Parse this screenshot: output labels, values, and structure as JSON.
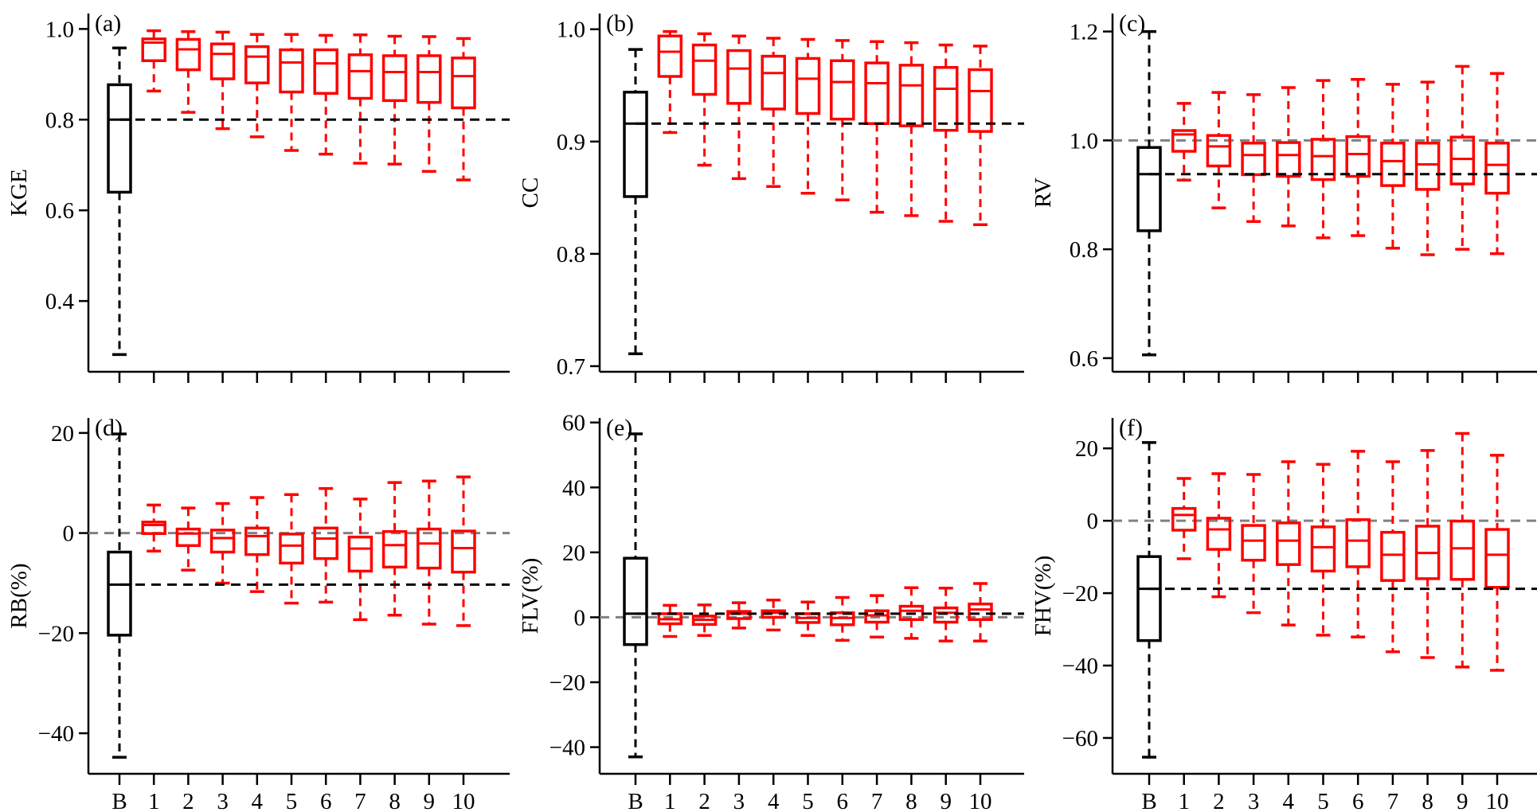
{
  "colors": {
    "baseline": "#000000",
    "models": "#ff0000",
    "zero_line": "#808080"
  },
  "chart_data": [
    {
      "type": "box",
      "panel_label": "(a)",
      "ylabel": "KGE",
      "categories": [
        "B",
        "1",
        "2",
        "3",
        "4",
        "5",
        "6",
        "7",
        "8",
        "9",
        "10"
      ],
      "yticks": [
        0.4,
        0.6,
        0.8,
        1.0
      ],
      "ytick_labels": [
        "0.4",
        "0.6",
        "0.8",
        "1.0"
      ],
      "ylim": [
        0.244,
        1.034
      ],
      "reference_line": 0.8,
      "zero_line": null,
      "boxes": [
        [
          0.282,
          0.64,
          0.8,
          0.877,
          0.958
        ],
        [
          0.863,
          0.93,
          0.97,
          0.978,
          0.996
        ],
        [
          0.816,
          0.91,
          0.955,
          0.977,
          0.994
        ],
        [
          0.78,
          0.89,
          0.945,
          0.967,
          0.993
        ],
        [
          0.762,
          0.881,
          0.939,
          0.961,
          0.988
        ],
        [
          0.732,
          0.861,
          0.926,
          0.954,
          0.988
        ],
        [
          0.724,
          0.858,
          0.924,
          0.954,
          0.986
        ],
        [
          0.704,
          0.847,
          0.907,
          0.943,
          0.987
        ],
        [
          0.702,
          0.842,
          0.905,
          0.941,
          0.984
        ],
        [
          0.686,
          0.838,
          0.905,
          0.941,
          0.983
        ],
        [
          0.667,
          0.826,
          0.896,
          0.936,
          0.979
        ]
      ]
    },
    {
      "type": "box",
      "panel_label": "(b)",
      "ylabel": "CC",
      "categories": [
        "B",
        "1",
        "2",
        "3",
        "4",
        "5",
        "6",
        "7",
        "8",
        "9",
        "10"
      ],
      "yticks": [
        0.7,
        0.8,
        0.9,
        1.0
      ],
      "ytick_labels": [
        "0.7",
        "0.8",
        "0.9",
        "1.0"
      ],
      "ylim": [
        0.695,
        1.014
      ],
      "reference_line": 0.916,
      "zero_line": null,
      "boxes": [
        [
          0.711,
          0.851,
          0.916,
          0.944,
          0.982
        ],
        [
          0.908,
          0.958,
          0.98,
          0.994,
          0.998
        ],
        [
          0.879,
          0.942,
          0.972,
          0.986,
          0.996
        ],
        [
          0.867,
          0.934,
          0.965,
          0.981,
          0.994
        ],
        [
          0.86,
          0.929,
          0.961,
          0.976,
          0.992
        ],
        [
          0.854,
          0.925,
          0.956,
          0.974,
          0.991
        ],
        [
          0.848,
          0.92,
          0.953,
          0.972,
          0.99
        ],
        [
          0.837,
          0.916,
          0.952,
          0.97,
          0.989
        ],
        [
          0.834,
          0.914,
          0.95,
          0.968,
          0.988
        ],
        [
          0.829,
          0.91,
          0.947,
          0.966,
          0.986
        ],
        [
          0.826,
          0.909,
          0.945,
          0.964,
          0.985
        ]
      ]
    },
    {
      "type": "box",
      "panel_label": "(c)",
      "ylabel": "RV",
      "categories": [
        "B",
        "1",
        "2",
        "3",
        "4",
        "5",
        "6",
        "7",
        "8",
        "9",
        "10"
      ],
      "yticks": [
        0.6,
        0.8,
        1.0,
        1.2
      ],
      "ytick_labels": [
        "0.6",
        "0.8",
        "1.0",
        "1.2"
      ],
      "ylim": [
        0.575,
        1.233
      ],
      "reference_line": 0.938,
      "zero_line": 1.0,
      "boxes": [
        [
          0.606,
          0.834,
          0.938,
          0.987,
          1.2
        ],
        [
          0.927,
          0.98,
          1.011,
          1.018,
          1.068
        ],
        [
          0.876,
          0.953,
          0.989,
          1.009,
          1.088
        ],
        [
          0.851,
          0.937,
          0.973,
          0.995,
          1.084
        ],
        [
          0.843,
          0.934,
          0.973,
          0.996,
          1.097
        ],
        [
          0.821,
          0.928,
          0.971,
          1.002,
          1.11
        ],
        [
          0.825,
          0.934,
          0.975,
          1.007,
          1.112
        ],
        [
          0.802,
          0.917,
          0.962,
          0.995,
          1.103
        ],
        [
          0.79,
          0.91,
          0.956,
          0.995,
          1.107
        ],
        [
          0.8,
          0.92,
          0.966,
          1.006,
          1.136
        ],
        [
          0.792,
          0.903,
          0.955,
          0.995,
          1.123
        ]
      ]
    },
    {
      "type": "box",
      "panel_label": "(d)",
      "ylabel": "RB(%)",
      "categories": [
        "B",
        "1",
        "2",
        "3",
        "4",
        "5",
        "6",
        "7",
        "8",
        "9",
        "10"
      ],
      "yticks": [
        -40,
        -20,
        0,
        20
      ],
      "ytick_labels": [
        "−40",
        "−20",
        "0",
        "20"
      ],
      "ylim": [
        -48.1,
        23.0
      ],
      "reference_line": -10.3,
      "zero_line": 0,
      "boxes": [
        [
          -44.8,
          -20.4,
          -10.3,
          -3.8,
          19.8
        ],
        [
          -3.6,
          -0.1,
          1.6,
          2.2,
          5.6
        ],
        [
          -7.4,
          -2.5,
          -0.1,
          0.8,
          5.0
        ],
        [
          -10.0,
          -3.8,
          -1.0,
          0.6,
          5.9
        ],
        [
          -11.7,
          -4.3,
          -0.6,
          1.0,
          7.1
        ],
        [
          -14.0,
          -6.0,
          -2.5,
          -0.2,
          7.7
        ],
        [
          -13.8,
          -5.1,
          -1.1,
          1.0,
          8.9
        ],
        [
          -17.3,
          -7.6,
          -3.1,
          -0.8,
          6.8
        ],
        [
          -16.4,
          -6.8,
          -2.4,
          0.3,
          10.1
        ],
        [
          -18.2,
          -7.0,
          -2.1,
          0.8,
          10.4
        ],
        [
          -18.5,
          -7.8,
          -3.0,
          0.4,
          11.2
        ]
      ]
    },
    {
      "type": "box",
      "panel_label": "(e)",
      "ylabel": "FLV(%)",
      "categories": [
        "B",
        "1",
        "2",
        "3",
        "4",
        "5",
        "6",
        "7",
        "8",
        "9",
        "10"
      ],
      "yticks": [
        -40,
        -20,
        0,
        20,
        40,
        60
      ],
      "ytick_labels": [
        "−40",
        "−20",
        "0",
        "20",
        "40",
        "60"
      ],
      "ylim": [
        -48.2,
        61.4
      ],
      "reference_line": 1.1,
      "zero_line": 0,
      "boxes": [
        [
          -43.0,
          -8.4,
          1.1,
          18.2,
          56.5
        ],
        [
          -5.9,
          -2.0,
          -0.6,
          1.1,
          3.7
        ],
        [
          -5.6,
          -2.2,
          -0.8,
          0.4,
          3.8
        ],
        [
          -3.3,
          -0.4,
          1.1,
          1.8,
          4.5
        ],
        [
          -3.9,
          0.0,
          1.4,
          2.0,
          5.3
        ],
        [
          -5.6,
          -1.6,
          -0.2,
          1.1,
          4.7
        ],
        [
          -7.1,
          -2.3,
          -0.2,
          1.4,
          6.1
        ],
        [
          -6.1,
          -1.5,
          0.6,
          2.0,
          6.7
        ],
        [
          -6.5,
          -0.7,
          2.0,
          3.4,
          9.1
        ],
        [
          -7.3,
          -1.5,
          1.4,
          2.9,
          9.0
        ],
        [
          -7.3,
          -0.7,
          2.4,
          4.1,
          10.4
        ]
      ]
    },
    {
      "type": "box",
      "panel_label": "(f)",
      "ylabel": "FHV(%)",
      "categories": [
        "B",
        "1",
        "2",
        "3",
        "4",
        "5",
        "6",
        "7",
        "8",
        "9",
        "10"
      ],
      "yticks": [
        -60,
        -40,
        -20,
        0,
        20
      ],
      "ytick_labels": [
        "−60",
        "−40",
        "−20",
        "0",
        "20"
      ],
      "ylim": [
        -69.9,
        28.4
      ],
      "reference_line": -18.8,
      "zero_line": 0,
      "boxes": [
        [
          -65.3,
          -33.1,
          -18.8,
          -9.9,
          21.6
        ],
        [
          -10.5,
          -2.6,
          1.6,
          3.4,
          11.7
        ],
        [
          -21.0,
          -7.9,
          -2.4,
          0.7,
          13.0
        ],
        [
          -25.4,
          -10.9,
          -5.5,
          -1.3,
          12.8
        ],
        [
          -28.8,
          -12.1,
          -5.5,
          -0.6,
          16.3
        ],
        [
          -31.6,
          -13.9,
          -7.3,
          -1.7,
          15.6
        ],
        [
          -32.1,
          -12.7,
          -5.5,
          0.3,
          19.2
        ],
        [
          -36.2,
          -16.5,
          -9.4,
          -3.2,
          16.3
        ],
        [
          -37.8,
          -16.0,
          -8.9,
          -1.5,
          19.4
        ],
        [
          -40.4,
          -16.2,
          -7.6,
          -0.1,
          24.1
        ],
        [
          -41.3,
          -18.4,
          -9.4,
          -2.4,
          18.1
        ]
      ]
    }
  ]
}
